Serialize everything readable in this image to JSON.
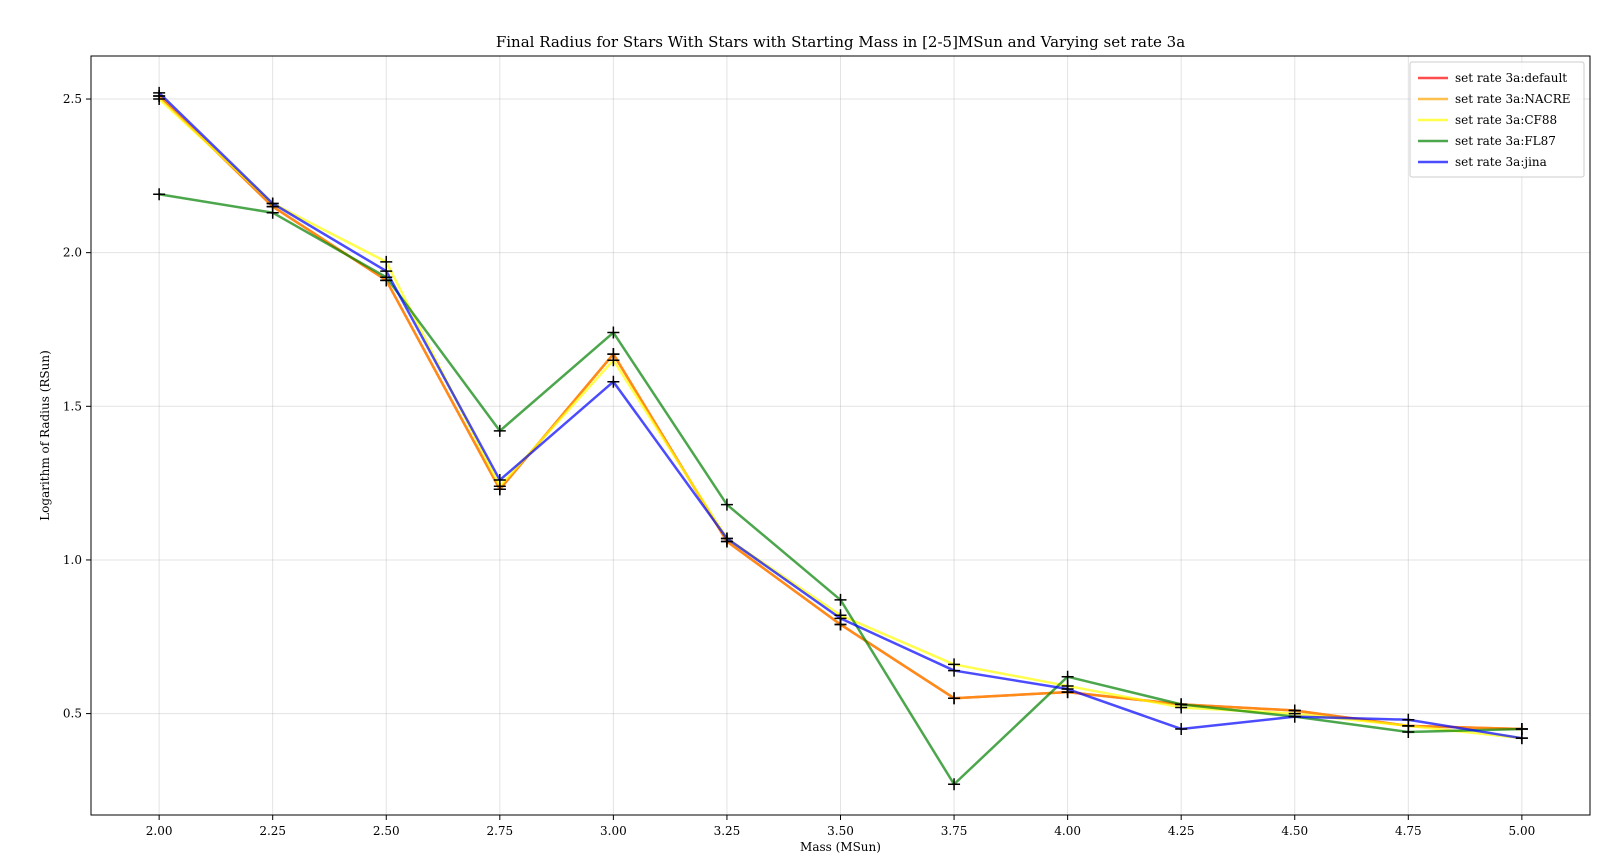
{
  "chart_data": {
    "type": "line",
    "title": "Final Radius for Stars With Stars with Starting Mass in [2-5]MSun and Varying set rate 3a",
    "xlabel": "Mass (MSun)",
    "ylabel": "Logarithm of Radius (RSun)",
    "xlim": [
      1.85,
      5.15
    ],
    "ylim": [
      0.17,
      2.64
    ],
    "x_ticks": [
      "2.00",
      "2.25",
      "2.50",
      "2.75",
      "3.00",
      "3.25",
      "3.50",
      "3.75",
      "4.00",
      "4.25",
      "4.50",
      "4.75",
      "5.00"
    ],
    "y_ticks": [
      "0.5",
      "1.0",
      "1.5",
      "2.0",
      "2.5"
    ],
    "grid": true,
    "legend_position": "top-right",
    "marker": "+",
    "marker_color": "#000000",
    "x": [
      2.0,
      2.25,
      2.5,
      2.75,
      3.0,
      3.25,
      3.5,
      3.75,
      4.0,
      4.25,
      4.5,
      4.75,
      5.0
    ],
    "series": [
      {
        "name": "set rate 3a:default",
        "color": "#ff0000",
        "values": [
          2.51,
          2.15,
          1.91,
          1.23,
          1.67,
          1.06,
          0.79,
          0.55,
          0.57,
          0.53,
          0.51,
          0.46,
          0.45
        ]
      },
      {
        "name": "set rate 3a:NACRE",
        "color": "#ffa500",
        "values": [
          2.51,
          2.15,
          1.91,
          1.23,
          1.67,
          1.06,
          0.79,
          0.55,
          0.57,
          0.53,
          0.51,
          0.46,
          0.45
        ]
      },
      {
        "name": "set rate 3a:CF88",
        "color": "#ffff00",
        "values": [
          2.5,
          2.16,
          1.97,
          1.24,
          1.65,
          1.07,
          0.82,
          0.66,
          0.59,
          0.52,
          0.5,
          0.46,
          0.42
        ]
      },
      {
        "name": "set rate 3a:FL87",
        "color": "#008000",
        "values": [
          2.19,
          2.13,
          1.92,
          1.42,
          1.74,
          1.18,
          0.87,
          0.27,
          0.62,
          0.53,
          0.49,
          0.44,
          0.45
        ]
      },
      {
        "name": "set rate 3a:jina",
        "color": "#0000ff",
        "values": [
          2.52,
          2.16,
          1.94,
          1.26,
          1.58,
          1.07,
          0.81,
          0.64,
          0.58,
          0.45,
          0.49,
          0.48,
          0.42
        ]
      }
    ]
  }
}
